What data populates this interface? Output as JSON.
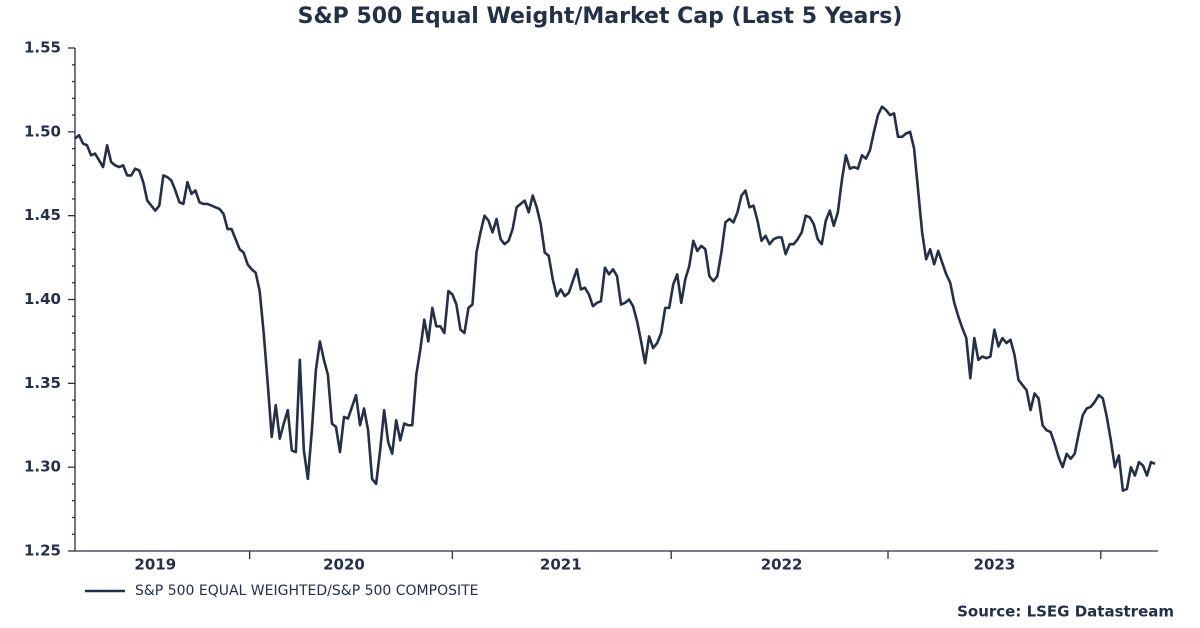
{
  "chart_data": {
    "type": "line",
    "title": "S&P 500 Equal Weight/Market Cap (Last 5 Years)",
    "source": "Source: LSEG Datastream",
    "categories": [
      null,
      null,
      null,
      null,
      null,
      null,
      null,
      null,
      null,
      null,
      null,
      null,
      null,
      null,
      null,
      null,
      null,
      null,
      null,
      null,
      "2019",
      null,
      null,
      null,
      null,
      null,
      null,
      null,
      null,
      null,
      null,
      null,
      null,
      null,
      null,
      null,
      null,
      null,
      null,
      null,
      null,
      null,
      null,
      null,
      null,
      null,
      null,
      null,
      null,
      null,
      null,
      null,
      null,
      null,
      null,
      null,
      null,
      null,
      null,
      null,
      null,
      null,
      null,
      null,
      null,
      null,
      null,
      "2020",
      null,
      null,
      null,
      null,
      null,
      null,
      null,
      null,
      null,
      null,
      null,
      null,
      null,
      null,
      null,
      null,
      null,
      null,
      null,
      null,
      null,
      null,
      null,
      null,
      null,
      null,
      null,
      null,
      null,
      null,
      null,
      null,
      null,
      null,
      null,
      null,
      null,
      null,
      null,
      null,
      null,
      null,
      null,
      null,
      null,
      null,
      null,
      null,
      null,
      null,
      null,
      null,
      null,
      "2021",
      null,
      null,
      null,
      null,
      null,
      null,
      null,
      null,
      null,
      null,
      null,
      null,
      null,
      null,
      null,
      null,
      null,
      null,
      null,
      null,
      null,
      null,
      null,
      null,
      null,
      null,
      null,
      null,
      null,
      null,
      null,
      null,
      null,
      null,
      null,
      null,
      null,
      null,
      null,
      null,
      null,
      null,
      null,
      null,
      null,
      null,
      null,
      null,
      null,
      null,
      null,
      null,
      null,
      null,
      "2022",
      null,
      null,
      null,
      null,
      null,
      null,
      null,
      null,
      null,
      null,
      null,
      null,
      null,
      null,
      null,
      null,
      null,
      null,
      null,
      null,
      null,
      null,
      null,
      null,
      null,
      null,
      null,
      null,
      null,
      null,
      null,
      null,
      null,
      null,
      null,
      null,
      null,
      null,
      null,
      null,
      null,
      null,
      null,
      null,
      null,
      null,
      null,
      null,
      null,
      null,
      null,
      null,
      "2023",
      null,
      null,
      null,
      null,
      null,
      null,
      null,
      null,
      null,
      null,
      null,
      null,
      null,
      null,
      null,
      null,
      null,
      null,
      null,
      null,
      null,
      null,
      null,
      null,
      null,
      null,
      null,
      null,
      null,
      null,
      null,
      null,
      null,
      null,
      null,
      null,
      null,
      null,
      null,
      null
    ],
    "series": [
      {
        "name": "S&P 500 EQUAL WEIGHTED/S&P 500 COMPOSITE",
        "color": "#243047",
        "values": [
          1.496,
          1.498,
          1.493,
          1.492,
          1.486,
          1.487,
          1.483,
          1.479,
          1.492,
          1.482,
          1.48,
          1.479,
          1.48,
          1.474,
          1.474,
          1.478,
          1.477,
          1.47,
          1.459,
          1.456,
          1.453,
          1.456,
          1.474,
          1.473,
          1.471,
          1.465,
          1.458,
          1.457,
          1.47,
          1.463,
          1.465,
          1.458,
          1.457,
          1.457,
          1.456,
          1.455,
          1.454,
          1.451,
          1.442,
          1.442,
          1.436,
          1.43,
          1.428,
          1.421,
          1.418,
          1.416,
          1.405,
          1.38,
          1.35,
          1.318,
          1.337,
          1.317,
          1.326,
          1.334,
          1.31,
          1.309,
          1.364,
          1.31,
          1.293,
          1.322,
          1.358,
          1.375,
          1.364,
          1.355,
          1.326,
          1.324,
          1.309,
          1.33,
          1.329,
          1.336,
          1.343,
          1.325,
          1.335,
          1.322,
          1.293,
          1.29,
          1.31,
          1.334,
          1.315,
          1.308,
          1.328,
          1.316,
          1.326,
          1.325,
          1.325,
          1.355,
          1.37,
          1.388,
          1.375,
          1.395,
          1.384,
          1.384,
          1.38,
          1.405,
          1.403,
          1.397,
          1.382,
          1.38,
          1.395,
          1.397,
          1.428,
          1.44,
          1.45,
          1.447,
          1.44,
          1.448,
          1.436,
          1.433,
          1.435,
          1.442,
          1.455,
          1.457,
          1.459,
          1.452,
          1.462,
          1.455,
          1.445,
          1.428,
          1.426,
          1.412,
          1.402,
          1.406,
          1.402,
          1.404,
          1.411,
          1.418,
          1.406,
          1.407,
          1.403,
          1.396,
          1.398,
          1.399,
          1.419,
          1.415,
          1.418,
          1.414,
          1.397,
          1.398,
          1.4,
          1.396,
          1.387,
          1.375,
          1.362,
          1.378,
          1.371,
          1.374,
          1.38,
          1.395,
          1.395,
          1.409,
          1.415,
          1.398,
          1.412,
          1.42,
          1.435,
          1.429,
          1.432,
          1.43,
          1.414,
          1.411,
          1.414,
          1.428,
          1.446,
          1.448,
          1.446,
          1.452,
          1.462,
          1.465,
          1.455,
          1.456,
          1.447,
          1.435,
          1.438,
          1.433,
          1.436,
          1.437,
          1.437,
          1.427,
          1.433,
          1.433,
          1.436,
          1.44,
          1.45,
          1.449,
          1.445,
          1.436,
          1.433,
          1.447,
          1.453,
          1.444,
          1.452,
          1.471,
          1.486,
          1.478,
          1.479,
          1.478,
          1.486,
          1.484,
          1.489,
          1.5,
          1.51,
          1.515,
          1.513,
          1.51,
          1.511,
          1.497,
          1.497,
          1.499,
          1.5,
          1.49,
          1.465,
          1.44,
          1.424,
          1.43,
          1.421,
          1.429,
          1.422,
          1.415,
          1.41,
          1.398,
          1.39,
          1.383,
          1.377,
          1.353,
          1.377,
          1.364,
          1.366,
          1.365,
          1.366,
          1.382,
          1.372,
          1.377,
          1.374,
          1.376,
          1.367,
          1.352,
          1.349,
          1.346,
          1.334,
          1.344,
          1.341,
          1.325,
          1.322,
          1.321,
          1.314,
          1.306,
          1.3,
          1.308,
          1.305,
          1.308,
          1.32,
          1.331,
          1.335,
          1.336,
          1.339,
          1.343,
          1.341,
          1.33,
          1.316,
          1.3,
          1.307,
          1.286,
          1.287,
          1.3,
          1.295,
          1.303,
          1.301,
          1.295,
          1.303,
          1.302
        ]
      }
    ],
    "ylim": [
      1.25,
      1.55
    ],
    "yticks": [
      1.25,
      {
        "value": 1.3,
        "label": "1.30"
      },
      1.35,
      {
        "value": 1.4,
        "label": "1.40"
      },
      1.45,
      {
        "value": 1.5,
        "label": "1.50"
      },
      1.55
    ],
    "grid": false,
    "legend": "bottom-left"
  }
}
